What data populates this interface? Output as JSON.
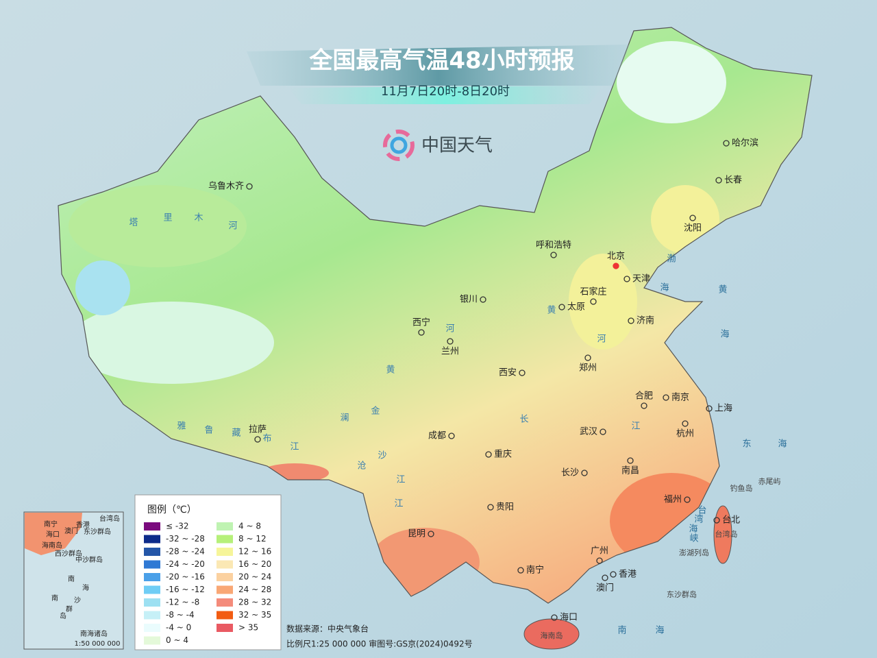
{
  "title": "全国最高气温48小时预报",
  "subtitle": "11月7日20时-8日20时",
  "brand": "中国天气",
  "cities": [
    "乌鲁木齐",
    "呼和浩特",
    "北京",
    "天津",
    "石家庄",
    "银川",
    "太原",
    "济南",
    "西宁",
    "兰州",
    "郑州",
    "西安",
    "合肥",
    "南京",
    "上海",
    "成都",
    "武汉",
    "杭州",
    "拉萨",
    "重庆",
    "长沙",
    "南昌",
    "贵阳",
    "福州",
    "台北",
    "昆明",
    "广州",
    "南宁",
    "香港",
    "澳门",
    "海口",
    "哈尔滨",
    "长春",
    "沈阳"
  ],
  "map_labels": [
    "塔",
    "里",
    "木",
    "河",
    "黄",
    "河",
    "黄",
    "河",
    "雅",
    "鲁",
    "藏",
    "布",
    "江",
    "长",
    "江",
    "澜",
    "沧",
    "江",
    "金",
    "沙",
    "江",
    "渤",
    "海",
    "黄",
    "海",
    "东",
    "海",
    "南",
    "海",
    "台",
    "湾",
    "海",
    "峡"
  ],
  "islands": [
    "钓鱼岛",
    "赤尾屿",
    "台湾岛",
    "澎湖列岛",
    "东沙群岛",
    "海南岛"
  ],
  "legend": {
    "title": "图例（℃）",
    "items": [
      {
        "label": "≤ -32",
        "color": "#7b0b7e"
      },
      {
        "label": "-32 ~ -28",
        "color": "#0d2b8a"
      },
      {
        "label": "-28 ~ -24",
        "color": "#2456a8"
      },
      {
        "label": "-24 ~ -20",
        "color": "#2f79d4"
      },
      {
        "label": "-20 ~ -16",
        "color": "#4aa0e8"
      },
      {
        "label": "-16 ~ -12",
        "color": "#6fcdf5"
      },
      {
        "label": "-12 ~ -8",
        "color": "#9de0f2"
      },
      {
        "label": "-8 ~ -4",
        "color": "#c6f0f7"
      },
      {
        "label": "-4 ~ 0",
        "color": "#eafcfd"
      },
      {
        "label": "0 ~ 4",
        "color": "#e4f9d9"
      },
      {
        "label": "4 ~ 8",
        "color": "#bff3b2"
      },
      {
        "label": "8 ~ 12",
        "color": "#b6f07a"
      },
      {
        "label": "12 ~ 16",
        "color": "#f6f59a"
      },
      {
        "label": "16 ~ 20",
        "color": "#fbe8b4"
      },
      {
        "label": "20 ~ 24",
        "color": "#fbd1a0"
      },
      {
        "label": "24 ~ 28",
        "color": "#f9a775"
      },
      {
        "label": "28 ~ 32",
        "color": "#f48b7b"
      },
      {
        "label": "32 ~ 35",
        "color": "#f25c12"
      },
      {
        "label": "> 35",
        "color": "#e95a63"
      }
    ]
  },
  "source": "数据来源：中央气象台",
  "scale": "比例尺1:25 000 000   审图号:GS京(2024)0492号",
  "inset": {
    "labels": [
      "南宁",
      "香港",
      "台湾岛",
      "海口",
      "澳门",
      "东沙群岛",
      "海南岛",
      "西沙群岛",
      "中沙群岛",
      "南",
      "海",
      "南",
      "沙",
      "群",
      "岛"
    ],
    "title": "南海诸岛",
    "scale": "1:50 000 000"
  }
}
